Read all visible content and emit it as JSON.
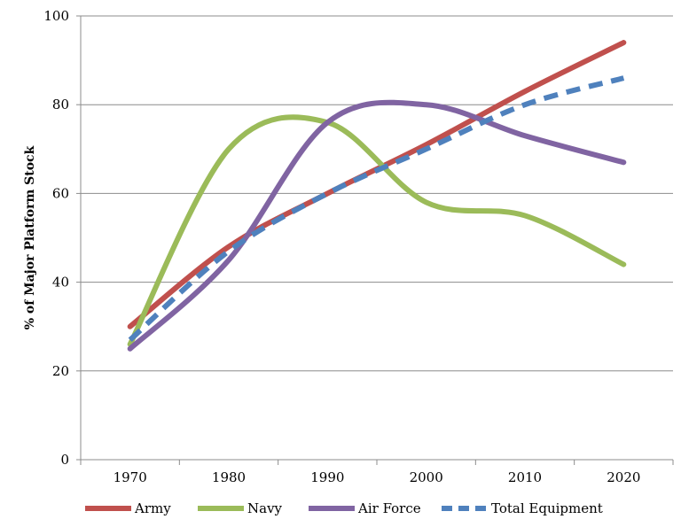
{
  "chart_data": {
    "type": "line",
    "title": "",
    "xlabel": "",
    "ylabel": "% of Major Platform Stock",
    "xlim": [
      1965,
      2025
    ],
    "ylim": [
      0,
      100
    ],
    "x_ticks": [
      1970,
      1980,
      1990,
      2000,
      2010,
      2020
    ],
    "y_ticks": [
      0,
      20,
      40,
      60,
      80,
      100
    ],
    "grid": "horizontal",
    "legend": "bottom",
    "x": [
      1970,
      1980,
      1990,
      2000,
      2010,
      2020
    ],
    "series": [
      {
        "name": "Army",
        "color": "#c0504d",
        "dash": "solid",
        "values": [
          30,
          48,
          60,
          71,
          83,
          94
        ]
      },
      {
        "name": "Navy",
        "color": "#9bbb59",
        "dash": "solid",
        "values": [
          26,
          70,
          76,
          58,
          55,
          44
        ]
      },
      {
        "name": "Air Force",
        "color": "#8064a2",
        "dash": "solid",
        "values": [
          25,
          45,
          76,
          80,
          73,
          67
        ]
      },
      {
        "name": "Total Equipment",
        "color": "#4f81bd",
        "dash": "dashed",
        "values": [
          27,
          47,
          60,
          70,
          80,
          86
        ]
      }
    ]
  }
}
